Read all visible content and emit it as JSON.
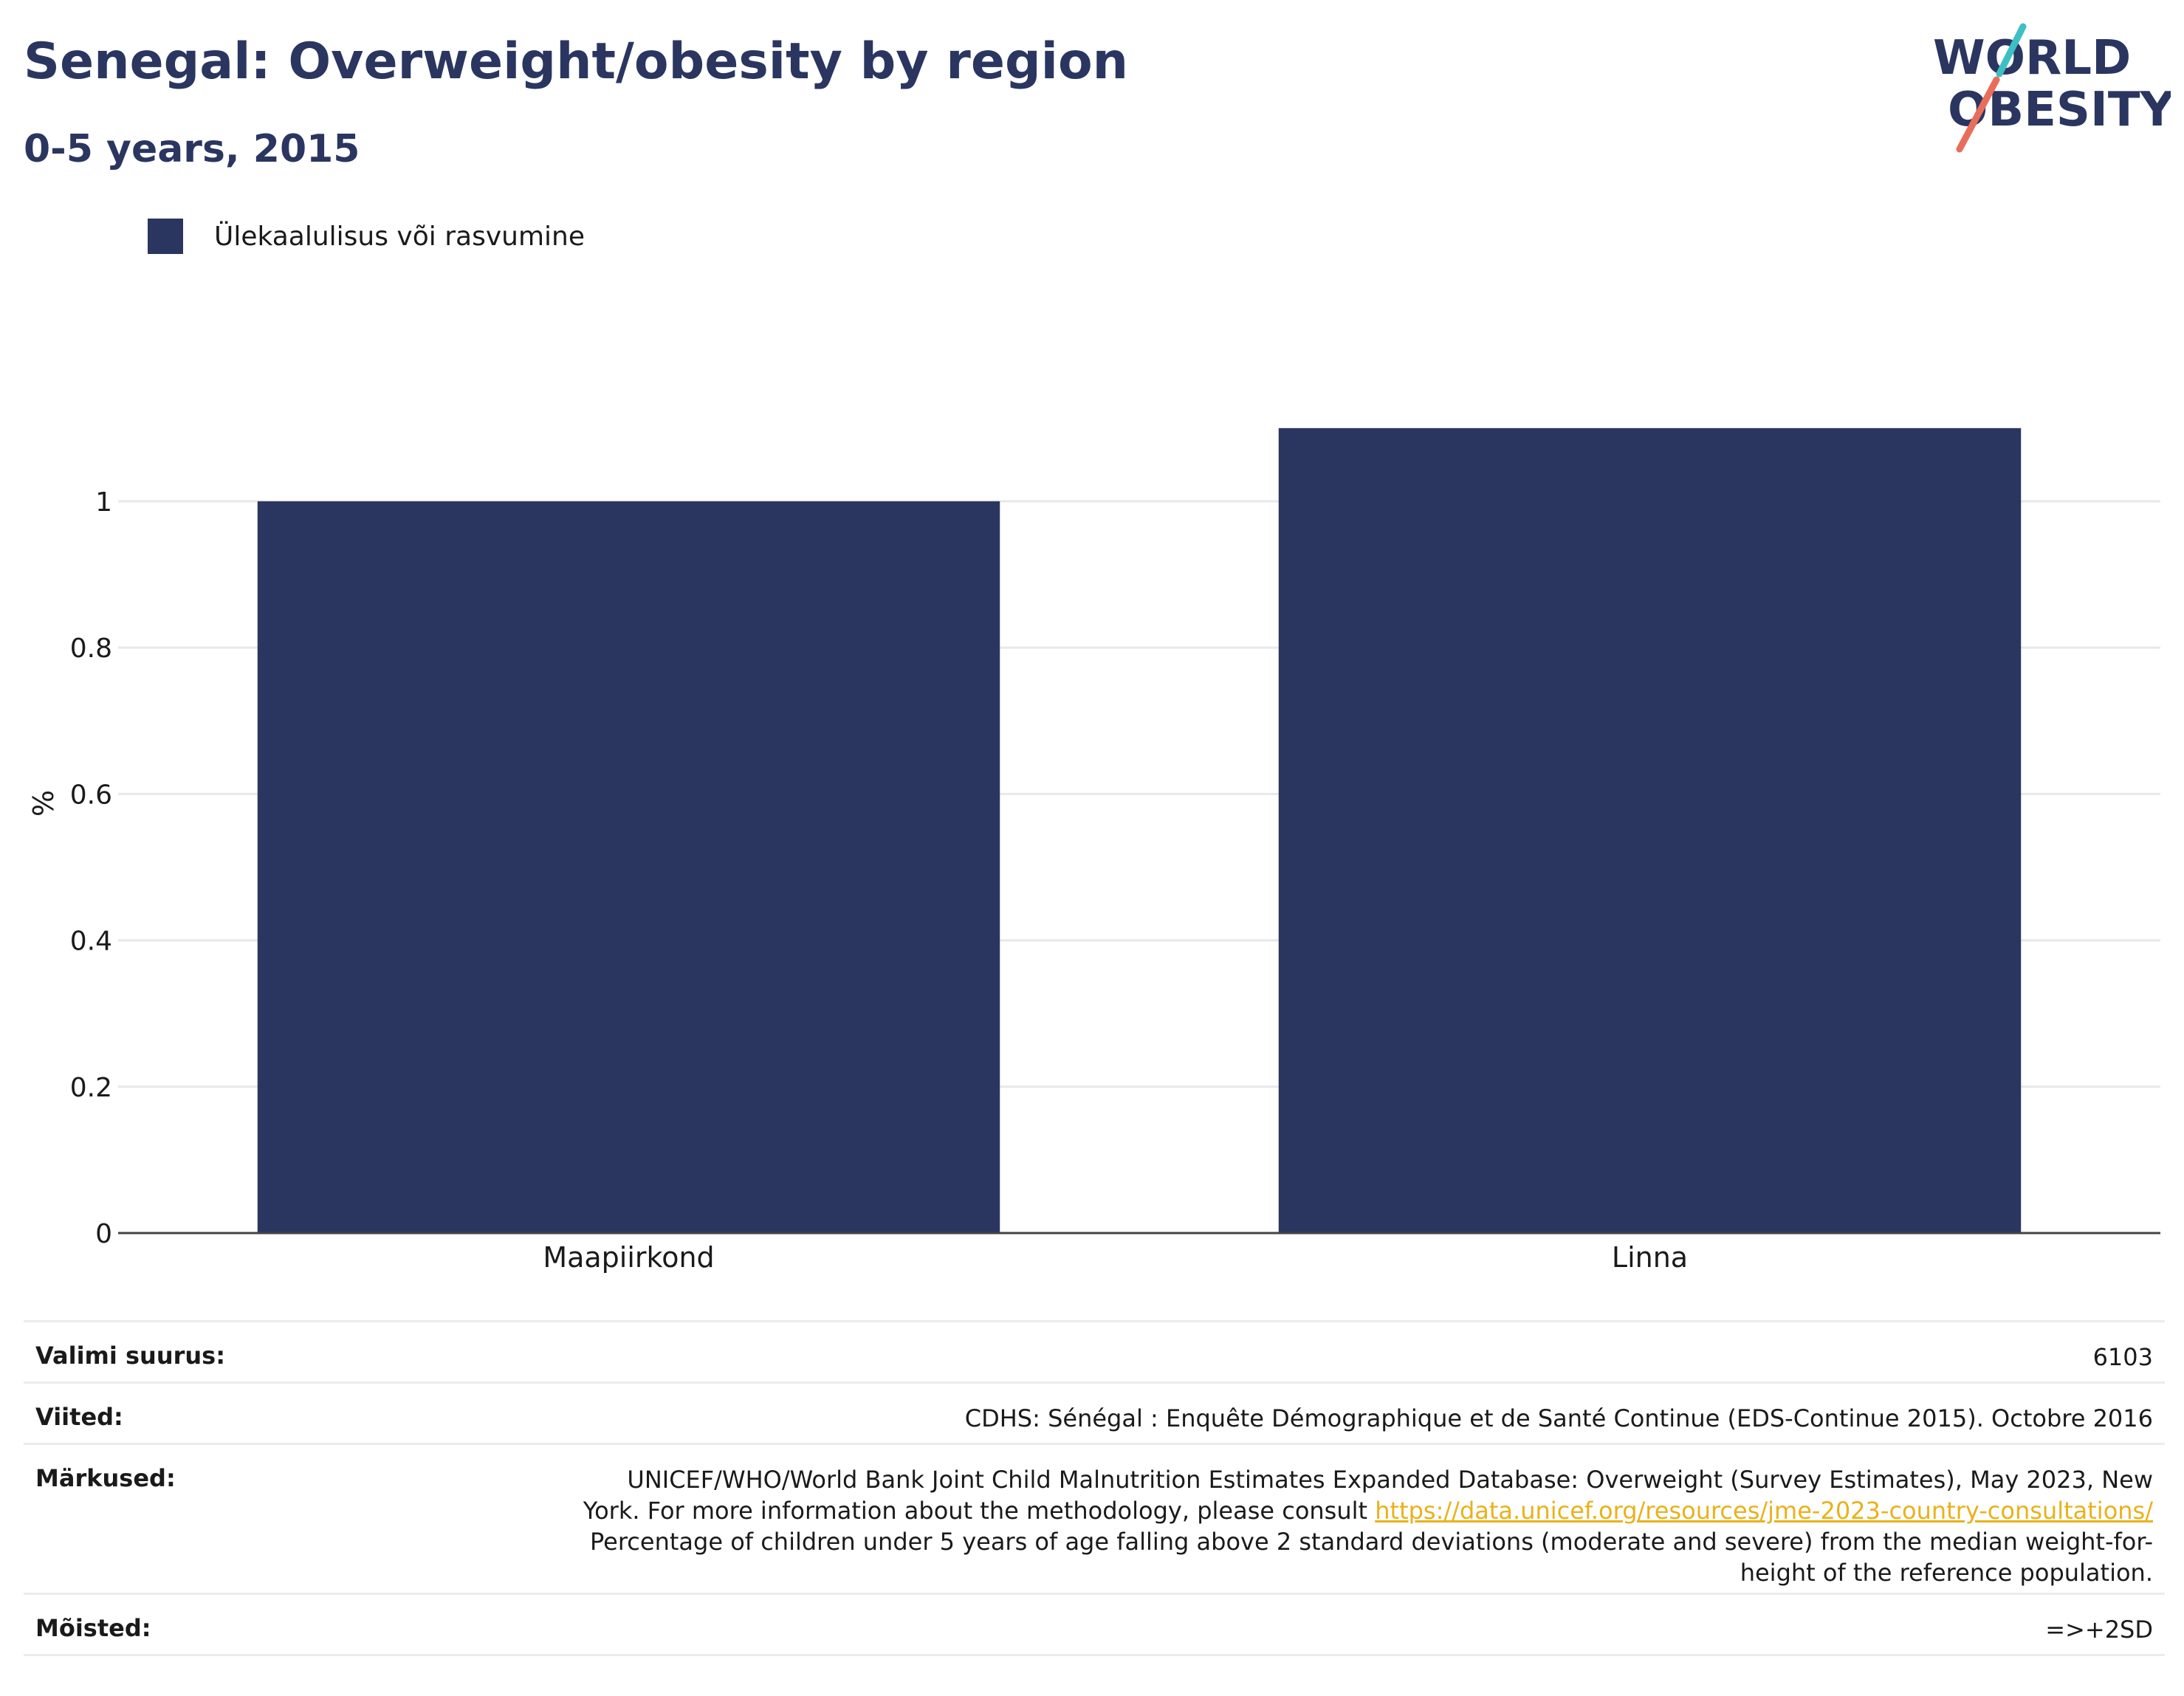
{
  "header": {
    "title": "Senegal: Overweight/obesity by region",
    "subtitle": "0-5 years, 2015"
  },
  "logo": {
    "line1": "WORLD",
    "line2": "OBESITY"
  },
  "colors": {
    "bar": "#2a3660",
    "accent_teal": "#3dbfc4",
    "accent_red": "#e86e5a",
    "link": "#e8b21c"
  },
  "chart_data": {
    "type": "bar",
    "categories": [
      "Maapiirkond",
      "Linna"
    ],
    "series": [
      {
        "name": "Ülekaalulisus või rasvumine",
        "values": [
          1.0,
          1.1
        ]
      }
    ],
    "ylabel": "%",
    "xlabel": "",
    "ylim": [
      0,
      1.12
    ],
    "yticks": [
      0,
      0.2,
      0.4,
      0.6,
      0.8,
      1
    ],
    "ytick_labels": [
      "0",
      "0.2",
      "0.4",
      "0.6",
      "0.8",
      "1"
    ],
    "grid": true,
    "legend_position": "top-left"
  },
  "info": {
    "sample_label": "Valimi suurus:",
    "sample_value": "6103",
    "refs_label": "Viited:",
    "refs_value": "CDHS: Sénégal : Enquête Démographique et de Santé Continue (EDS-Continue 2015). Octobre 2016",
    "notes_label": "Märkused:",
    "notes_line1": "UNICEF/WHO/World Bank Joint Child Malnutrition Estimates Expanded Database: Overweight (Survey Estimates), May 2023, New",
    "notes_line2_pre": "York. For more information about the methodology, please consult ",
    "notes_link": "https://data.unicef.org/resources/jme-2023-country-consultations/",
    "notes_line3": "Percentage of children under 5 years of age falling above 2 standard deviations (moderate and severe) from the median weight-for-",
    "notes_line4": "height of the reference population.",
    "defs_label": "Mõisted:",
    "defs_value": "=>+2SD"
  }
}
